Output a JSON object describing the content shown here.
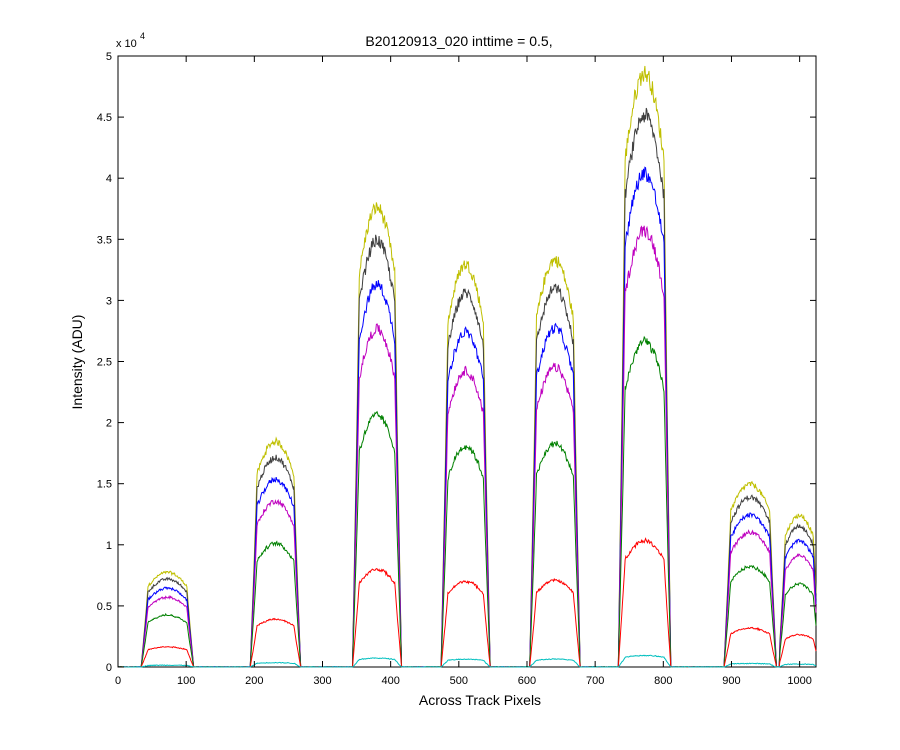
{
  "chart_data": {
    "type": "line",
    "title": "B20120913_020 inttime = 0.5,",
    "xlabel": "Across Track Pixels",
    "ylabel": "Intensity (ADU)",
    "xlim": [
      0,
      1024
    ],
    "ylim": [
      0,
      50000
    ],
    "y_scale_base": "x 10",
    "y_scale_exponent": "4",
    "x_ticks": [
      0,
      100,
      200,
      300,
      400,
      500,
      600,
      700,
      800,
      900,
      1000
    ],
    "x_tick_labels": [
      "0",
      "100",
      "200",
      "300",
      "400",
      "500",
      "600",
      "700",
      "800",
      "900",
      "1000"
    ],
    "y_ticks": [
      0,
      5000,
      10000,
      15000,
      20000,
      25000,
      30000,
      35000,
      40000,
      45000,
      50000
    ],
    "y_tick_labels": [
      "0",
      "0.5",
      "1",
      "1.5",
      "2",
      "2.5",
      "3",
      "3.5",
      "4",
      "4.5",
      "5"
    ],
    "grid": false,
    "segments": [
      {
        "start": 40,
        "end": 105,
        "peak": 1.0
      },
      {
        "start": 200,
        "end": 262,
        "peak": 2.38
      },
      {
        "start": 350,
        "end": 410,
        "peak": 4.85
      },
      {
        "start": 480,
        "end": 540,
        "peak": 4.25
      },
      {
        "start": 610,
        "end": 672,
        "peak": 4.3
      },
      {
        "start": 740,
        "end": 805,
        "peak": 6.27
      },
      {
        "start": 895,
        "end": 960,
        "peak": 1.93
      },
      {
        "start": 975,
        "end": 1024,
        "peak": 1.6
      }
    ],
    "series": [
      {
        "color": "#bfbf00",
        "scale": 7750
      },
      {
        "color": "#404040",
        "scale": 7200
      },
      {
        "color": "#0000ff",
        "scale": 6450
      },
      {
        "color": "#bf00bf",
        "scale": 5700
      },
      {
        "color": "#008000",
        "scale": 4250
      },
      {
        "color": "#ff0000",
        "scale": 1650
      },
      {
        "color": "#00bfbf",
        "scale": 150
      }
    ]
  }
}
